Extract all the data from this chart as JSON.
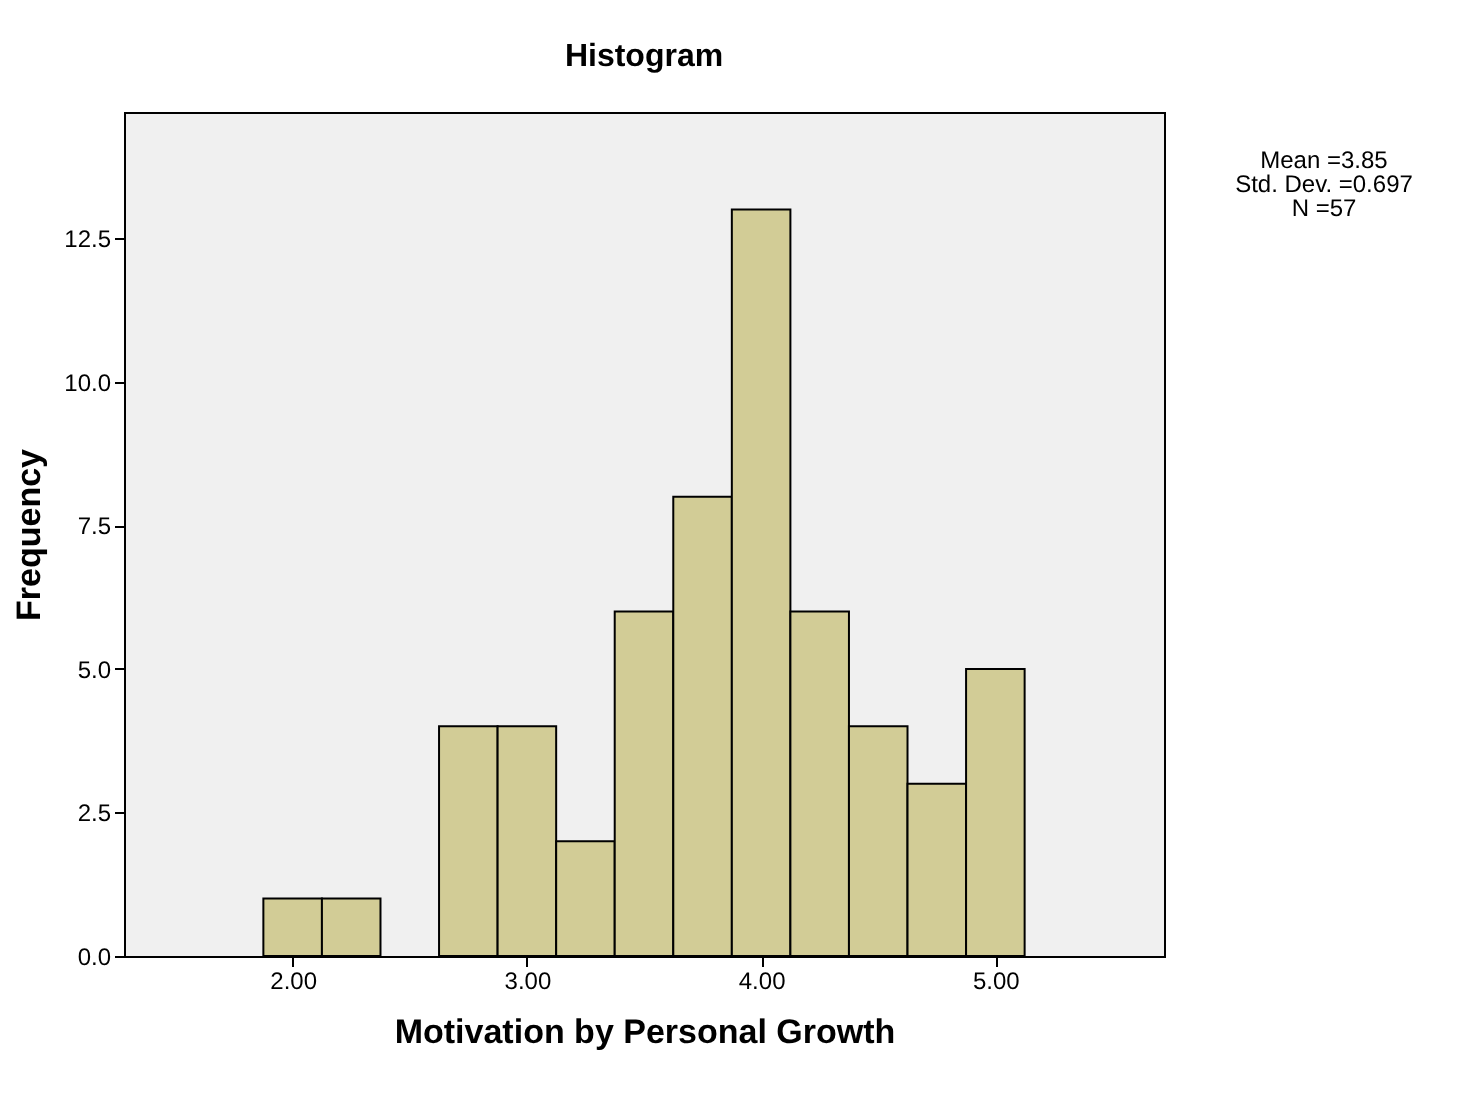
{
  "chart_data": {
    "type": "histogram",
    "title": "Histogram",
    "xlabel": "Motivation by Personal Growth",
    "ylabel": "Frequency",
    "bins": [
      1.875,
      2.125,
      2.375,
      2.625,
      2.875,
      3.125,
      3.375,
      3.625,
      3.875,
      4.125,
      4.375,
      4.625,
      4.875,
      5.125
    ],
    "values": [
      1,
      1,
      0,
      4,
      4,
      2,
      6,
      8,
      13,
      6,
      4,
      3,
      5
    ],
    "color": "#d2cc96",
    "xlim": [
      1.28,
      5.72
    ],
    "xticks": [
      {
        "value": 2,
        "label": "2.00"
      },
      {
        "value": 3,
        "label": "3.00"
      },
      {
        "value": 4,
        "label": "4.00"
      },
      {
        "value": 5,
        "label": "5.00"
      }
    ],
    "ylim": [
      0,
      14.7
    ],
    "yticks": [
      {
        "value": 0,
        "label": "0.0"
      },
      {
        "value": 2.5,
        "label": "2.5"
      },
      {
        "value": 5,
        "label": "5.0"
      },
      {
        "value": 7.5,
        "label": "7.5"
      },
      {
        "value": 10,
        "label": "10.0"
      },
      {
        "value": 12.5,
        "label": "12.5"
      }
    ],
    "grid": false,
    "annotations": [
      "Mean =3.85",
      "Std. Dev. =0.697",
      "N =57"
    ]
  }
}
